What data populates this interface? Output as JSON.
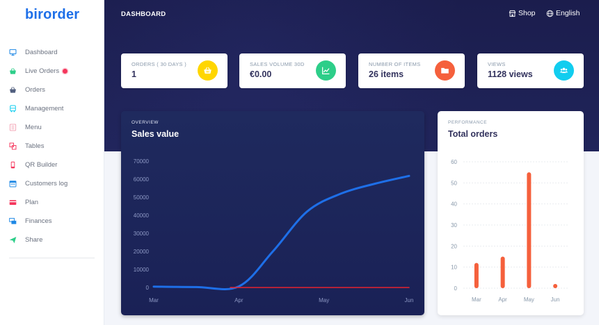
{
  "app": {
    "logo": "birorder"
  },
  "sidebar": {
    "items": [
      {
        "label": "Dashboard",
        "icon": "monitor-icon",
        "color": "#1e88e5"
      },
      {
        "label": "Live Orders",
        "icon": "basket-icon",
        "color": "#2dce89",
        "live": true
      },
      {
        "label": "Orders",
        "icon": "basket-icon",
        "color": "#525f7f"
      },
      {
        "label": "Management",
        "icon": "bus-icon",
        "color": "#11cdef"
      },
      {
        "label": "Menu",
        "icon": "list-icon",
        "color": "#f3a4b5"
      },
      {
        "label": "Tables",
        "icon": "tables-icon",
        "color": "#f5365c"
      },
      {
        "label": "QR Builder",
        "icon": "mobile-icon",
        "color": "#f5365c"
      },
      {
        "label": "Customers log",
        "icon": "calendar-icon",
        "color": "#1e88e5"
      },
      {
        "label": "Plan",
        "icon": "credit-card-icon",
        "color": "#f5365c"
      },
      {
        "label": "Finances",
        "icon": "money-icon",
        "color": "#1e88e5"
      },
      {
        "label": "Share",
        "icon": "send-icon",
        "color": "#2dce89"
      }
    ]
  },
  "header": {
    "title": "DASHBOARD",
    "shop_label": "Shop",
    "language_label": "English"
  },
  "stats": [
    {
      "label": "ORDERS ( 30 DAYS )",
      "value": "1",
      "icon": "basket-icon",
      "color": "#ffd600"
    },
    {
      "label": "SALES VOLUME 30D",
      "value": "€0.00",
      "icon": "chart-line-icon",
      "color": "#2dce89"
    },
    {
      "label": "NUMBER OF ITEMS",
      "value": "26 items",
      "icon": "folder-icon",
      "color": "#f5603c"
    },
    {
      "label": "VIEWS",
      "value": "1128 views",
      "icon": "users-icon",
      "color": "#11cdef"
    }
  ],
  "chart_data": [
    {
      "type": "line",
      "overline": "OVERVIEW",
      "title": "Sales value",
      "categories": [
        "Mar",
        "Apr",
        "May",
        "Jun"
      ],
      "ylim": [
        0,
        70000
      ],
      "yticks": [
        0,
        10000,
        20000,
        30000,
        40000,
        50000,
        60000,
        70000
      ],
      "series": [
        {
          "color": "#1e6fe8",
          "points": [
            [
              0,
              500
            ],
            [
              0.5,
              250
            ],
            [
              1,
              600
            ],
            [
              1.4,
              20000
            ],
            [
              1.8,
              42000
            ],
            [
              2.2,
              52000
            ],
            [
              2.6,
              57500
            ],
            [
              3,
              61800
            ]
          ]
        },
        {
          "color": "#e8232f",
          "points": [
            [
              0.9,
              0
            ],
            [
              3,
              0
            ]
          ]
        }
      ],
      "grid": false
    },
    {
      "type": "bar",
      "overline": "PERFORMANCE",
      "title": "Total orders",
      "categories": [
        "Mar",
        "Apr",
        "May",
        "Jun"
      ],
      "values": [
        12,
        15,
        55,
        2
      ],
      "ylim": [
        0,
        60
      ],
      "yticks": [
        0,
        10,
        20,
        30,
        40,
        50,
        60
      ],
      "color": "#f5603c",
      "grid": true
    }
  ]
}
